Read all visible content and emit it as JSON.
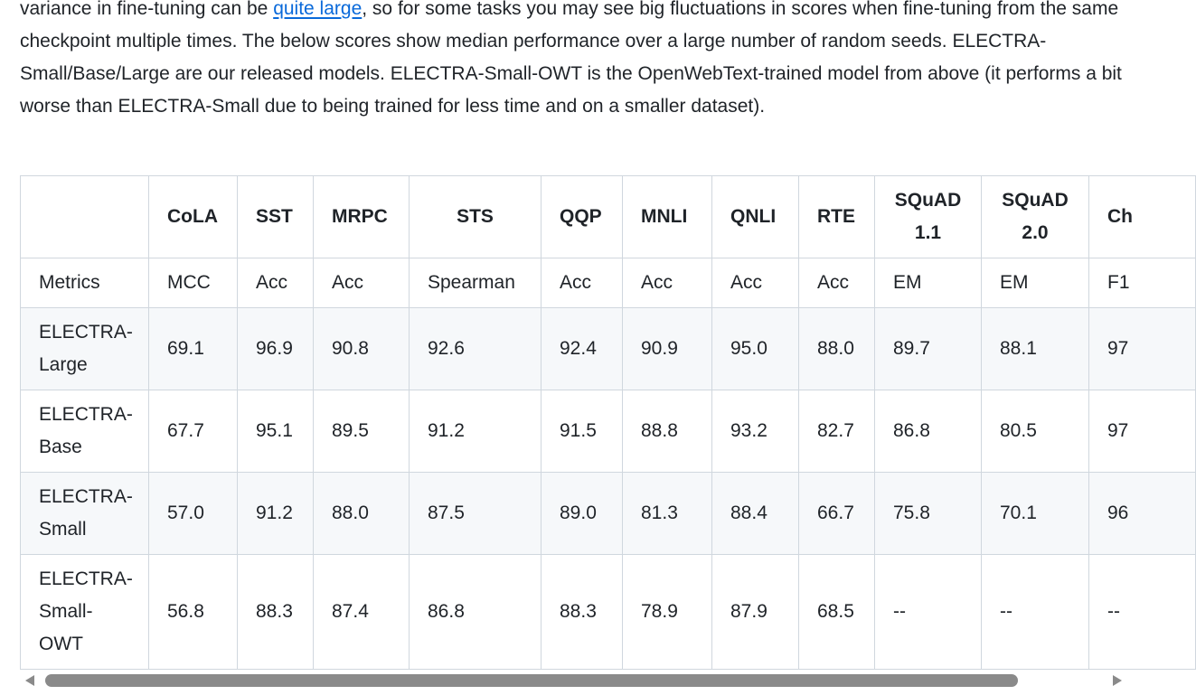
{
  "paragraph": {
    "before_link": "variance in fine-tuning can be ",
    "link_text": "quite large",
    "after_link": ", so for some tasks you may see big fluctuations in scores when fine-tuning from the same checkpoint multiple times. The below scores show median performance over a large number of random seeds. ELECTRA-Small/Base/Large are our released models. ELECTRA-Small-OWT is the OpenWebText-trained model from above (it performs a bit worse than ELECTRA-Small due to being trained for less time and on a smaller dataset)."
  },
  "table": {
    "headers": [
      "",
      "CoLA",
      "SST",
      "MRPC",
      "STS",
      "QQP",
      "MNLI",
      "QNLI",
      "RTE",
      "SQuAD 1.1",
      "SQuAD 2.0",
      "Ch"
    ],
    "metrics": [
      "Metrics",
      "MCC",
      "Acc",
      "Acc",
      "Spearman",
      "Acc",
      "Acc",
      "Acc",
      "Acc",
      "EM",
      "EM",
      "F1"
    ],
    "rows": [
      [
        "ELECTRA-Large",
        "69.1",
        "96.9",
        "90.8",
        "92.6",
        "92.4",
        "90.9",
        "95.0",
        "88.0",
        "89.7",
        "88.1",
        "97"
      ],
      [
        "ELECTRA-Base",
        "67.7",
        "95.1",
        "89.5",
        "91.2",
        "91.5",
        "88.8",
        "93.2",
        "82.7",
        "86.8",
        "80.5",
        "97"
      ],
      [
        "ELECTRA-Small",
        "57.0",
        "91.2",
        "88.0",
        "87.5",
        "89.0",
        "81.3",
        "88.4",
        "66.7",
        "75.8",
        "70.1",
        "96"
      ],
      [
        "ELECTRA-Small-OWT",
        "56.8",
        "88.3",
        "87.4",
        "86.8",
        "88.3",
        "78.9",
        "87.9",
        "68.5",
        "--",
        "--",
        "--"
      ]
    ]
  },
  "colors": {
    "link": "#0969da",
    "border": "#d0d7de",
    "alt_row": "#f6f8fa",
    "text": "#1f2328",
    "scrollbar": "#8a8a8a"
  }
}
